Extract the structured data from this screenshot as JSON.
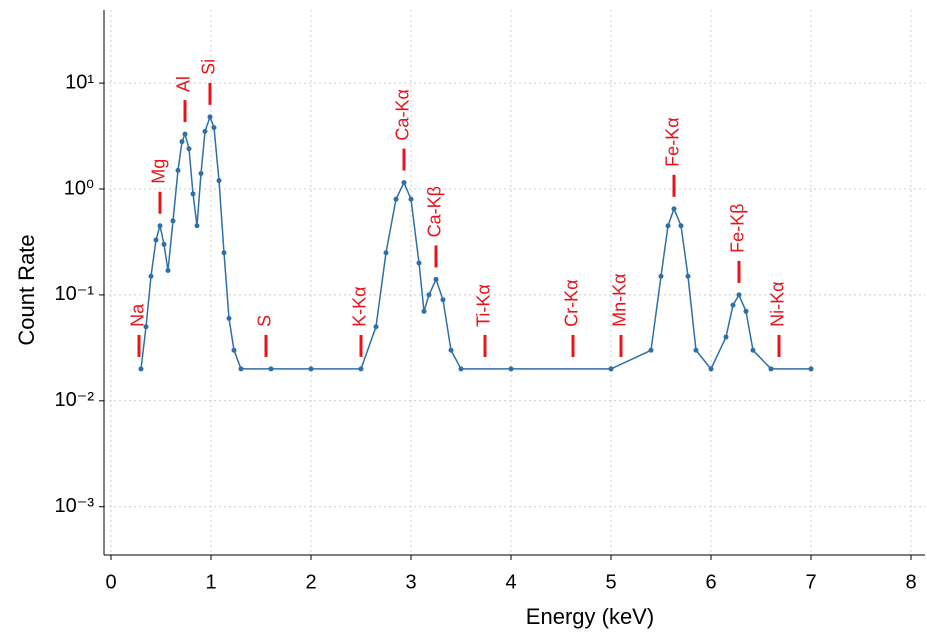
{
  "chart_data": {
    "type": "scatter",
    "xlabel": "Energy (keV)",
    "ylabel": "Count Rate",
    "xlim": [
      -0.07,
      8.14
    ],
    "ylim": [
      0.00035,
      49
    ],
    "xticks": [
      0,
      1,
      2,
      3,
      4,
      5,
      6,
      7,
      8
    ],
    "yticks": [
      {
        "value": 0.001,
        "label": "10⁻³"
      },
      {
        "value": 0.01,
        "label": "10⁻²"
      },
      {
        "value": 0.1,
        "label": "10⁻¹"
      },
      {
        "value": 1,
        "label": "10⁰"
      },
      {
        "value": 10,
        "label": "10¹"
      }
    ],
    "log_y": true,
    "grid": true,
    "color": "#2e6fa7",
    "line_color": "#e8141c",
    "x": [
      0.3,
      0.35,
      0.4,
      0.45,
      0.49,
      0.53,
      0.57,
      0.62,
      0.67,
      0.71,
      0.74,
      0.78,
      0.82,
      0.86,
      0.9,
      0.94,
      0.99,
      1.03,
      1.08,
      1.13,
      1.18,
      1.23,
      1.3,
      1.6,
      2.0,
      2.5,
      2.65,
      2.75,
      2.85,
      2.93,
      3.0,
      3.08,
      3.13,
      3.18,
      3.25,
      3.32,
      3.4,
      3.5,
      4.0,
      5.0,
      5.4,
      5.5,
      5.57,
      5.63,
      5.7,
      5.77,
      5.85,
      6.0,
      6.15,
      6.22,
      6.28,
      6.35,
      6.42,
      6.6,
      7.0
    ],
    "values": [
      0.02,
      0.05,
      0.15,
      0.33,
      0.45,
      0.3,
      0.17,
      0.5,
      1.5,
      2.8,
      3.3,
      2.4,
      0.9,
      0.45,
      1.4,
      3.5,
      4.8,
      3.8,
      1.2,
      0.25,
      0.06,
      0.03,
      0.02,
      0.02,
      0.02,
      0.02,
      0.05,
      0.25,
      0.8,
      1.15,
      0.8,
      0.2,
      0.07,
      0.1,
      0.14,
      0.09,
      0.03,
      0.02,
      0.02,
      0.02,
      0.03,
      0.15,
      0.45,
      0.65,
      0.45,
      0.15,
      0.03,
      0.02,
      0.04,
      0.08,
      0.1,
      0.07,
      0.03,
      0.02,
      0.02
    ],
    "lines": [
      {
        "label": "Na",
        "x": 0.28
      },
      {
        "label": "Mg",
        "x": 0.49
      },
      {
        "label": "Al",
        "x": 0.74
      },
      {
        "label": "Si",
        "x": 0.99
      },
      {
        "label": "S",
        "x": 1.55
      },
      {
        "label": "K-Kα",
        "x": 2.5
      },
      {
        "label": "Ca-Kα",
        "x": 2.93
      },
      {
        "label": "Ca-Kβ",
        "x": 3.25
      },
      {
        "label": "Ti-Kα",
        "x": 3.74
      },
      {
        "label": "Cr-Kα",
        "x": 4.62
      },
      {
        "label": "Mn-Kα",
        "x": 5.1
      },
      {
        "label": "Fe-Kα",
        "x": 5.63
      },
      {
        "label": "Fe-Kβ",
        "x": 6.28
      },
      {
        "label": "Ni-Kα",
        "x": 6.68
      }
    ]
  }
}
